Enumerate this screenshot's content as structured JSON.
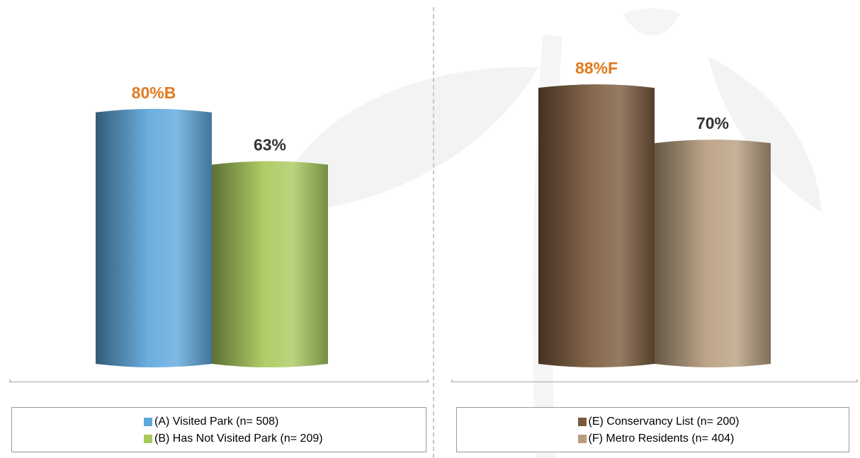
{
  "chart_data": [
    {
      "type": "bar",
      "title": "",
      "xlabel": "",
      "ylabel": "",
      "ylim": [
        0,
        100
      ],
      "categories": [
        "(A) Visited Park (n= 508)",
        "(B) Has Not Visited Park (n= 209)"
      ],
      "values": [
        80,
        63
      ],
      "data_labels": [
        "80%B",
        "63%"
      ],
      "data_label_colors": [
        "#e07a1f",
        "#333333"
      ],
      "colors": [
        "#5ea7dc",
        "#a9c95c"
      ],
      "legend": {
        "position": "bottom",
        "entries": [
          "(A) Visited Park (n= 508)",
          "(B) Has Not Visited Park (n= 209)"
        ]
      },
      "grid": false
    },
    {
      "type": "bar",
      "title": "",
      "xlabel": "",
      "ylabel": "",
      "ylim": [
        0,
        100
      ],
      "categories": [
        "(E) Conservancy List (n= 200)",
        "(F) Metro Residents (n= 404)"
      ],
      "values": [
        88,
        70
      ],
      "data_labels": [
        "88%F",
        "70%"
      ],
      "data_label_colors": [
        "#e07a1f",
        "#333333"
      ],
      "colors": [
        "#7a5a3c",
        "#b89e80"
      ],
      "legend": {
        "position": "bottom",
        "entries": [
          "(E) Conservancy List (n= 200)",
          "(F) Metro Residents (n= 404)"
        ]
      },
      "grid": false
    }
  ]
}
